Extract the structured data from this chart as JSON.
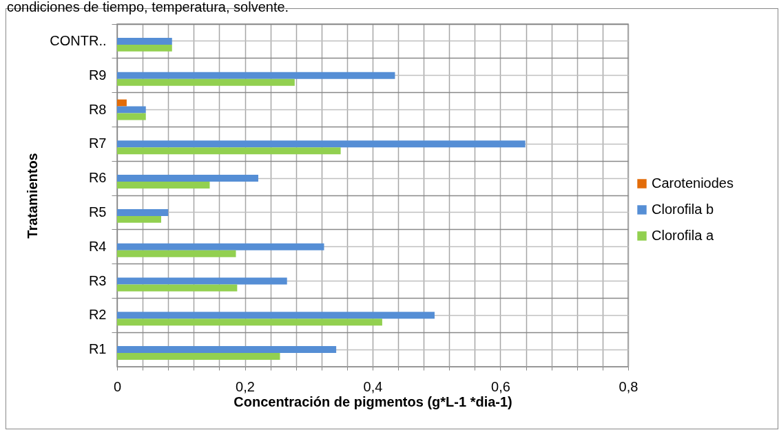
{
  "chart_data": {
    "type": "bar",
    "orientation": "horizontal",
    "annotations": [
      "condiciones de tiempo, temperatura, solvente."
    ],
    "xlabel": "Concentración de pigmentos (g*L-1 *dia-1)",
    "ylabel": "Tratamientos",
    "categories": [
      "CONTR..",
      "R9",
      "R8",
      "R7",
      "R6",
      "R5",
      "R4",
      "R3",
      "R2",
      "R1"
    ],
    "series": [
      {
        "name": "Caroteniodes",
        "color": "#e36c09",
        "values": [
          null,
          null,
          0.015,
          null,
          null,
          null,
          null,
          null,
          null,
          null
        ]
      },
      {
        "name": "Clorofila b",
        "color": "#558ed5",
        "values": [
          0.086,
          0.435,
          0.045,
          0.639,
          0.221,
          0.08,
          0.324,
          0.266,
          0.497,
          0.343
        ]
      },
      {
        "name": "Clorofila a",
        "color": "#92d050",
        "values": [
          0.086,
          0.278,
          0.045,
          0.35,
          0.145,
          0.069,
          0.186,
          0.188,
          0.415,
          0.255
        ]
      }
    ],
    "xlim": [
      0,
      0.8
    ],
    "xticks": [
      0,
      {
        "value": 0.04,
        "label": null
      },
      {
        "value": 0.08,
        "label": null
      },
      {
        "value": 0.12,
        "label": null
      },
      {
        "value": 0.16,
        "label": null
      },
      {
        "value": 0.2,
        "label": "0,2"
      },
      {
        "value": 0.24,
        "label": null
      },
      {
        "value": 0.28,
        "label": null
      },
      {
        "value": 0.32,
        "label": null
      },
      {
        "value": 0.36,
        "label": null
      },
      {
        "value": 0.4,
        "label": "0,4"
      },
      {
        "value": 0.44,
        "label": null
      },
      {
        "value": 0.48,
        "label": null
      },
      {
        "value": 0.52,
        "label": null
      },
      {
        "value": 0.56,
        "label": null
      },
      {
        "value": 0.6,
        "label": "0,6"
      },
      {
        "value": 0.64,
        "label": null
      },
      {
        "value": 0.68,
        "label": null
      },
      {
        "value": 0.72,
        "label": null
      },
      {
        "value": 0.76,
        "label": null
      },
      {
        "value": 0.8,
        "label": "0,8"
      }
    ],
    "grid": true,
    "legend": "right"
  }
}
